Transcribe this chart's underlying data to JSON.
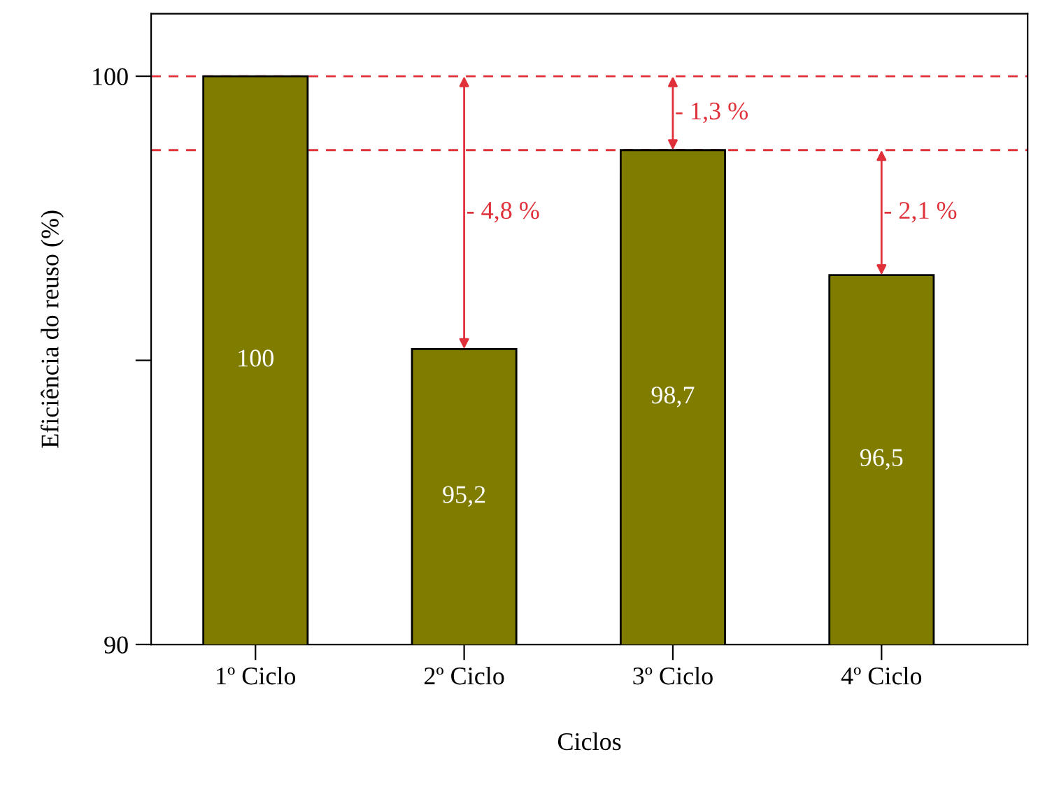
{
  "chart_data": {
    "type": "bar",
    "categories": [
      "1º Ciclo",
      "2º Ciclo",
      "3º Ciclo",
      "4º Ciclo"
    ],
    "values": [
      100,
      95.2,
      98.7,
      96.5
    ],
    "color": "#7f7c00",
    "value_labels": [
      "100",
      "95,2",
      "98,7",
      "96,5"
    ],
    "xlabel": "Ciclos",
    "ylabel": "Eficiência do reuso (%)",
    "ylim": [
      90,
      101.1
    ],
    "yticks": [
      90,
      {
        "value": 95,
        "label": null
      },
      100
    ],
    "ref_lines": [
      {
        "axis": "y",
        "value": 100,
        "color": "#e0303a",
        "line_style": "dashed"
      },
      {
        "axis": "y",
        "value": 98.7,
        "color": "#e0303a",
        "line_style": "dashed"
      }
    ],
    "annotations": [
      "- 4,8 %",
      "- 1,3 %",
      "- 2,1 %"
    ],
    "grid": false,
    "legend": false
  }
}
